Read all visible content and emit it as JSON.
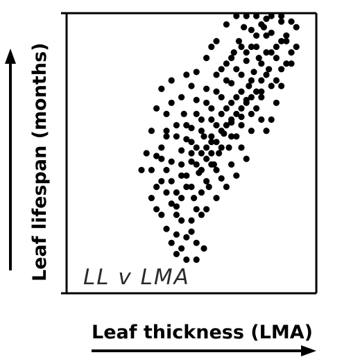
{
  "chart_data": {
    "type": "scatter",
    "title": "",
    "xlabel": "Leaf thickness (LMA)",
    "ylabel": "Leaf lifespan (months)",
    "annotation": "LL v LMA",
    "x_ticks_labeled": false,
    "y_ticks_labeled": false,
    "xlim": [
      0,
      100
    ],
    "ylim": [
      0,
      100
    ],
    "grid": false,
    "legend": "none",
    "marker_color": "#000000",
    "series": [
      {
        "points": [
          [
            34,
            44
          ],
          [
            36,
            49
          ],
          [
            38,
            40
          ],
          [
            40,
            56
          ],
          [
            40,
            36
          ],
          [
            42,
            47
          ],
          [
            44,
            60
          ],
          [
            44,
            31
          ],
          [
            46,
            51
          ],
          [
            46,
            42
          ],
          [
            47,
            64
          ],
          [
            48,
            55
          ],
          [
            48,
            38
          ],
          [
            50,
            47
          ],
          [
            50,
            59
          ],
          [
            51,
            34
          ],
          [
            52,
            69
          ],
          [
            52,
            52
          ],
          [
            53,
            43
          ],
          [
            54,
            62
          ],
          [
            54,
            28
          ],
          [
            55,
            56
          ],
          [
            56,
            48
          ],
          [
            56,
            73
          ],
          [
            57,
            38
          ],
          [
            58,
            66
          ],
          [
            58,
            54
          ],
          [
            59,
            46
          ],
          [
            60,
            78
          ],
          [
            60,
            60
          ],
          [
            61,
            50
          ],
          [
            62,
            70
          ],
          [
            62,
            41
          ],
          [
            63,
            57
          ],
          [
            64,
            82
          ],
          [
            64,
            66
          ],
          [
            65,
            52
          ],
          [
            66,
            75
          ],
          [
            66,
            61
          ],
          [
            67,
            86
          ],
          [
            68,
            70
          ],
          [
            68,
            56
          ],
          [
            69,
            90
          ],
          [
            70,
            78
          ],
          [
            70,
            63
          ],
          [
            71,
            95
          ],
          [
            72,
            83
          ],
          [
            72,
            69
          ],
          [
            73,
            74
          ],
          [
            74,
            88
          ],
          [
            75,
            79
          ],
          [
            76,
            92
          ],
          [
            77,
            84
          ],
          [
            78,
            72
          ],
          [
            79,
            95
          ],
          [
            80,
            86
          ],
          [
            81,
            80
          ],
          [
            82,
            93
          ],
          [
            84,
            88
          ],
          [
            86,
            97
          ],
          [
            40,
            23
          ],
          [
            42,
            18
          ],
          [
            44,
            21
          ],
          [
            46,
            16
          ],
          [
            38,
            73
          ],
          [
            36,
            66
          ],
          [
            42,
            76
          ],
          [
            48,
            78
          ],
          [
            56,
            84
          ],
          [
            60,
            90
          ],
          [
            64,
            96
          ],
          [
            68,
            99
          ],
          [
            72,
            99
          ],
          [
            76,
            99
          ],
          [
            80,
            98
          ],
          [
            84,
            76
          ],
          [
            88,
            90
          ],
          [
            90,
            82
          ],
          [
            66,
            46
          ],
          [
            70,
            52
          ],
          [
            74,
            58
          ],
          [
            76,
            66
          ],
          [
            78,
            62
          ],
          [
            60,
            34
          ],
          [
            56,
            30
          ],
          [
            50,
            26
          ],
          [
            44,
            28
          ],
          [
            52,
            18
          ],
          [
            48,
            12
          ],
          [
            44,
            14
          ],
          [
            52,
            12
          ],
          [
            55,
            16
          ],
          [
            36,
            30
          ],
          [
            38,
            52
          ],
          [
            40,
            64
          ],
          [
            42,
            68
          ],
          [
            34,
            58
          ],
          [
            30,
            44
          ],
          [
            32,
            50
          ],
          [
            46,
            70
          ],
          [
            50,
            74
          ],
          [
            52,
            79
          ],
          [
            58,
            88
          ],
          [
            62,
            80
          ],
          [
            66,
            84
          ],
          [
            70,
            88
          ],
          [
            74,
            94
          ],
          [
            78,
            96
          ],
          [
            82,
            99
          ],
          [
            86,
            99
          ],
          [
            90,
            97
          ],
          [
            92,
            88
          ],
          [
            88,
            82
          ],
          [
            86,
            74
          ],
          [
            84,
            68
          ],
          [
            82,
            62
          ],
          [
            80,
            58
          ],
          [
            72,
            48
          ],
          [
            68,
            42
          ],
          [
            64,
            38
          ],
          [
            60,
            44
          ],
          [
            58,
            50
          ],
          [
            56,
            40
          ],
          [
            54,
            36
          ],
          [
            52,
            30
          ],
          [
            50,
            22
          ],
          [
            48,
            20
          ],
          [
            46,
            26
          ],
          [
            44,
            36
          ],
          [
            42,
            40
          ],
          [
            40,
            44
          ],
          [
            38,
            48
          ],
          [
            36,
            38
          ],
          [
            34,
            34
          ],
          [
            38,
            28
          ],
          [
            42,
            32
          ],
          [
            46,
            34
          ],
          [
            50,
            38
          ],
          [
            54,
            44
          ],
          [
            58,
            46
          ],
          [
            62,
            52
          ],
          [
            66,
            56
          ],
          [
            70,
            60
          ],
          [
            74,
            64
          ],
          [
            78,
            70
          ],
          [
            82,
            74
          ],
          [
            86,
            80
          ],
          [
            90,
            86
          ],
          [
            48,
            60
          ],
          [
            52,
            64
          ],
          [
            56,
            68
          ],
          [
            60,
            72
          ],
          [
            64,
            76
          ],
          [
            68,
            80
          ],
          [
            72,
            86
          ],
          [
            76,
            88
          ],
          [
            80,
            92
          ],
          [
            44,
            56
          ],
          [
            40,
            58
          ],
          [
            50,
            54
          ],
          [
            54,
            58
          ],
          [
            58,
            62
          ],
          [
            62,
            64
          ],
          [
            66,
            68
          ],
          [
            70,
            72
          ],
          [
            74,
            76
          ],
          [
            78,
            82
          ],
          [
            82,
            86
          ],
          [
            86,
            90
          ],
          [
            46,
            46
          ],
          [
            50,
            50
          ],
          [
            54,
            50
          ],
          [
            58,
            56
          ],
          [
            62,
            58
          ],
          [
            66,
            62
          ],
          [
            70,
            66
          ],
          [
            74,
            70
          ],
          [
            78,
            76
          ],
          [
            48,
            42
          ],
          [
            52,
            46
          ],
          [
            56,
            52
          ],
          [
            60,
            54
          ],
          [
            64,
            60
          ],
          [
            68,
            64
          ],
          [
            72,
            68
          ],
          [
            76,
            72
          ],
          [
            80,
            78
          ],
          [
            84,
            84
          ],
          [
            88,
            92
          ],
          [
            92,
            95
          ]
        ]
      }
    ]
  }
}
